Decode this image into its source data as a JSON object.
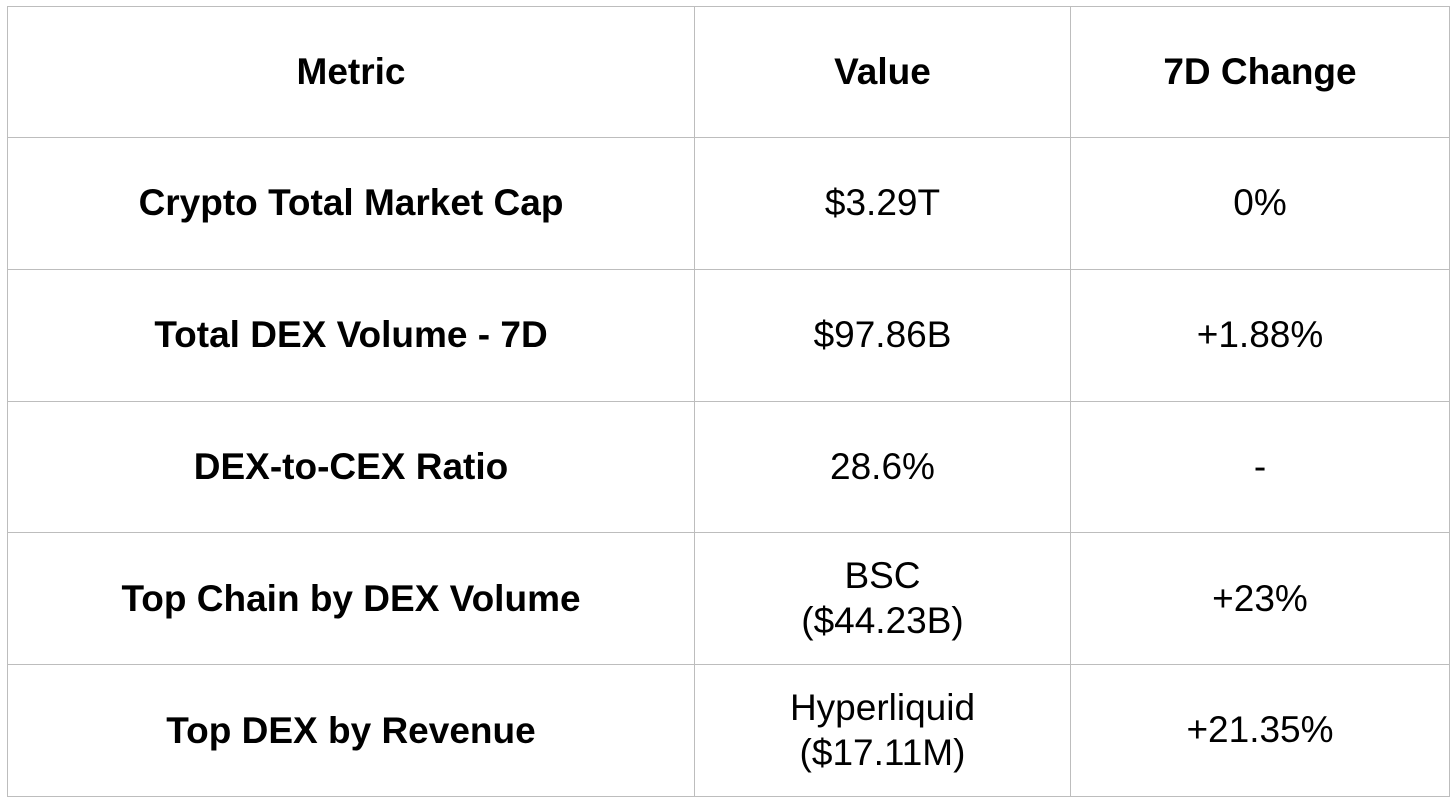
{
  "table": {
    "headers": [
      "Metric",
      "Value",
      "7D Change"
    ],
    "rows": [
      {
        "metric": "Crypto Total Market Cap",
        "value_lines": [
          "$3.29T"
        ],
        "change": "0%"
      },
      {
        "metric": "Total DEX Volume - 7D",
        "value_lines": [
          "$97.86B"
        ],
        "change": "+1.88%"
      },
      {
        "metric": "DEX-to-CEX Ratio",
        "value_lines": [
          "28.6%"
        ],
        "change": "-"
      },
      {
        "metric": "Top Chain by DEX Volume",
        "value_lines": [
          "BSC",
          "($44.23B)"
        ],
        "change": "+23%"
      },
      {
        "metric": "Top DEX by Revenue",
        "value_lines": [
          "Hyperliquid",
          "($17.11M)"
        ],
        "change": "+21.35%"
      }
    ]
  },
  "colors": {
    "border": "#bdbdbd",
    "text": "#000000",
    "background": "#ffffff"
  }
}
